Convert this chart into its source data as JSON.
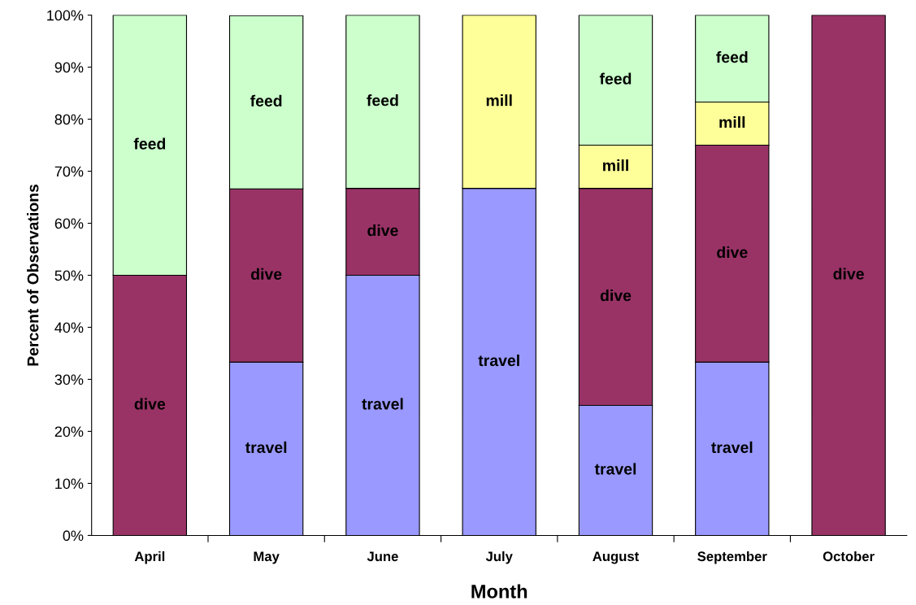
{
  "chart_data": {
    "type": "bar",
    "stacked": true,
    "xlabel": "Month",
    "ylabel": "Percent of Observations",
    "categories": [
      "April",
      "May",
      "June",
      "July",
      "August",
      "September",
      "October"
    ],
    "series": [
      {
        "name": "travel",
        "color": "#9999ff",
        "values": [
          null,
          33.3,
          50,
          66.7,
          25,
          33.3,
          null
        ]
      },
      {
        "name": "dive",
        "color": "#993366",
        "values": [
          50,
          33.3,
          16.7,
          null,
          41.7,
          41.7,
          100
        ]
      },
      {
        "name": "mill",
        "color": "#ffff99",
        "values": [
          null,
          null,
          null,
          33.3,
          8.3,
          8.3,
          null
        ]
      },
      {
        "name": "feed",
        "color": "#ccffcc",
        "values": [
          50,
          33.3,
          33.3,
          null,
          25,
          16.7,
          null
        ]
      }
    ],
    "ylim": [
      0,
      100
    ],
    "yticks": [
      {
        "value": 0,
        "label": "0%"
      },
      {
        "value": 10,
        "label": "10%"
      },
      {
        "value": 20,
        "label": "20%"
      },
      {
        "value": 30,
        "label": "30%"
      },
      {
        "value": 40,
        "label": "40%"
      },
      {
        "value": 50,
        "label": "50%"
      },
      {
        "value": 60,
        "label": "60%"
      },
      {
        "value": 70,
        "label": "70%"
      },
      {
        "value": 80,
        "label": "80%"
      },
      {
        "value": 90,
        "label": "90%"
      },
      {
        "value": 100,
        "label": "100%"
      }
    ],
    "grid": false,
    "legend": false
  }
}
